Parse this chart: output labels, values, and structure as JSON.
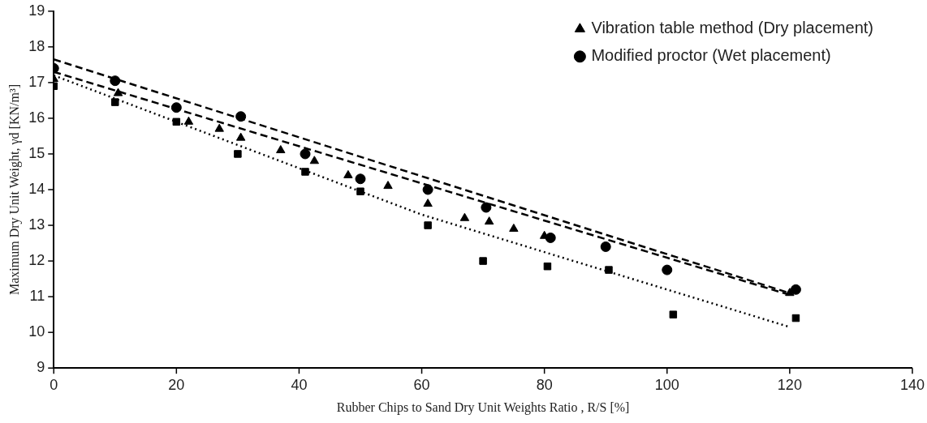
{
  "chart_data": {
    "type": "scatter",
    "xlabel": "Rubber Chips to Sand Dry Unit Weights Ratio , R/S [%]",
    "ylabel": "Maximum Dry Unit Weight, γd [KN/m³]",
    "xlim": [
      0,
      140
    ],
    "xticks": [
      0,
      20,
      40,
      60,
      80,
      100,
      120,
      140
    ],
    "ylim": [
      9,
      19
    ],
    "yticks": [
      9,
      10,
      11,
      12,
      13,
      14,
      15,
      16,
      17,
      18,
      19
    ],
    "grid": false,
    "legend": "top right",
    "series": [
      {
        "name": "Vibration table method (Dry placement)",
        "marker": "triangle",
        "color": "#000000",
        "x": [
          0,
          10.5,
          22,
          27,
          30.5,
          37,
          42.5,
          48,
          54.5,
          61,
          67,
          71,
          75,
          80,
          120
        ],
        "values": [
          17.1,
          16.7,
          15.9,
          15.7,
          15.45,
          15.1,
          14.8,
          14.4,
          14.1,
          13.6,
          13.2,
          13.1,
          12.9,
          12.7,
          11.1
        ]
      },
      {
        "name": "Modified proctor (Wet placement)",
        "marker": "circle",
        "color": "#000000",
        "x": [
          0,
          10,
          20,
          30.5,
          41,
          50,
          61,
          70.5,
          81,
          90,
          100,
          121
        ],
        "values": [
          17.4,
          17.05,
          16.3,
          16.05,
          15.0,
          14.3,
          14.0,
          13.5,
          12.65,
          12.4,
          11.75,
          11.2
        ]
      },
      {
        "marker": "square",
        "color": "#000000",
        "x": [
          0,
          10,
          20,
          30,
          41,
          50,
          61,
          70,
          80.5,
          90.5,
          101,
          121
        ],
        "values": [
          16.9,
          16.45,
          15.9,
          15.0,
          14.5,
          13.95,
          13.0,
          12.0,
          11.85,
          11.75,
          10.5,
          10.4
        ]
      },
      {
        "type": "line",
        "line_style": "dashed",
        "marker": "none",
        "color": "#000000",
        "x": [
          0,
          120
        ],
        "values": [
          17.65,
          11.1
        ]
      },
      {
        "type": "line",
        "line_style": "dashed",
        "marker": "none",
        "color": "#000000",
        "x": [
          0,
          120
        ],
        "values": [
          17.3,
          11.05
        ]
      },
      {
        "type": "line",
        "line_style": "dotted",
        "marker": "none",
        "color": "#000000",
        "x": [
          0,
          60,
          120
        ],
        "values": [
          17.2,
          13.3,
          10.15
        ]
      }
    ]
  }
}
